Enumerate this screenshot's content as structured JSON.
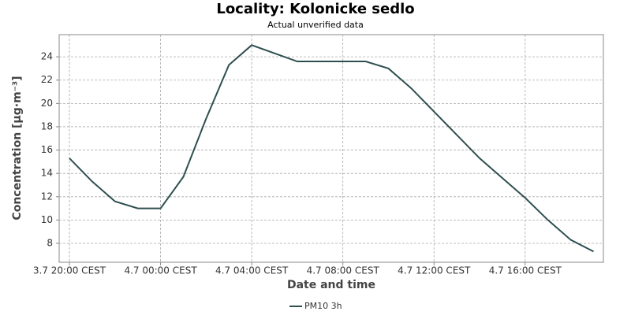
{
  "chart_data": {
    "type": "line",
    "title": "Locality: Kolonicke sedlo",
    "subtitle": "Actual unverified data",
    "x_label": "Date and time",
    "y_label": "Concentration [µg·m⁻³]",
    "x": [
      "3.7 20:00",
      "3.7 21:00",
      "3.7 22:00",
      "3.7 23:00",
      "4.7 00:00",
      "4.7 01:00",
      "4.7 02:00",
      "4.7 03:00",
      "4.7 04:00",
      "4.7 05:00",
      "4.7 06:00",
      "4.7 07:00",
      "4.7 08:00",
      "4.7 09:00",
      "4.7 10:00",
      "4.7 11:00",
      "4.7 12:00",
      "4.7 13:00",
      "4.7 14:00",
      "4.7 15:00",
      "4.7 16:00",
      "4.7 17:00",
      "4.7 18:00",
      "4.7 19:00"
    ],
    "series": [
      {
        "name": "PM10 3h",
        "color": "#2f4f4f",
        "values": [
          15.3,
          13.3,
          11.6,
          11.0,
          11.0,
          13.7,
          18.7,
          23.3,
          25.0,
          24.3,
          23.6,
          23.6,
          23.6,
          23.6,
          23.0,
          21.3,
          19.3,
          17.3,
          15.3,
          13.6,
          11.9,
          10.0,
          8.3,
          7.3
        ]
      }
    ],
    "xlim": [
      "3.7 19:33",
      "4.7 19:26"
    ],
    "xticks": [
      {
        "value": "3.7 20:00",
        "label": "3.7 20:00 CEST"
      },
      {
        "value": "4.7 00:00",
        "label": "4.7 00:00 CEST"
      },
      {
        "value": "4.7 04:00",
        "label": "4.7 04:00 CEST"
      },
      {
        "value": "4.7 08:00",
        "label": "4.7 08:00 CEST"
      },
      {
        "value": "4.7 12:00",
        "label": "4.7 12:00 CEST"
      },
      {
        "value": "4.7 16:00",
        "label": "4.7 16:00 CEST"
      }
    ],
    "ylim": [
      6.38,
      25.9
    ],
    "yticks": [
      8,
      10,
      12,
      14,
      16,
      18,
      20,
      22,
      24
    ],
    "grid": true,
    "legend": "bottom"
  }
}
